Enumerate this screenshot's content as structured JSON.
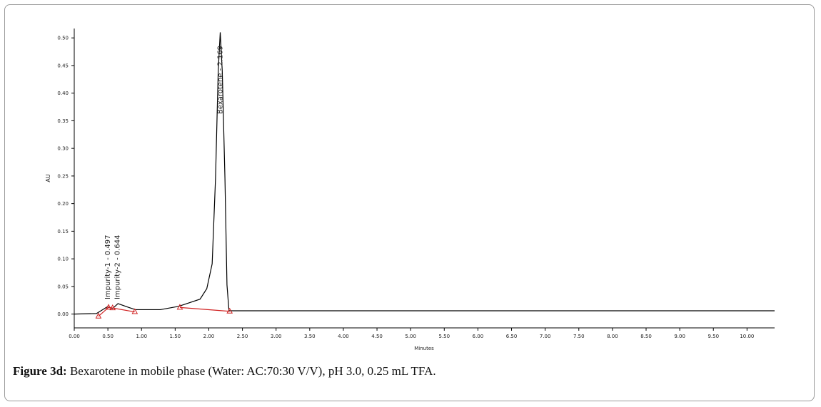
{
  "chart_data": {
    "type": "line",
    "y_label": "AU",
    "x_label": "Minutes",
    "xlim": [
      0,
      10.41
    ],
    "ylim": [
      -0.025,
      0.517
    ],
    "xticks": [
      {
        "value": 0,
        "label": "0.00"
      },
      {
        "value": 0.5,
        "label": "0.50"
      },
      {
        "value": 1,
        "label": "1.00"
      },
      {
        "value": 1.5,
        "label": "1.50"
      },
      {
        "value": 2,
        "label": "2.00"
      },
      {
        "value": 2.5,
        "label": "2.50"
      },
      {
        "value": 3,
        "label": "3.00"
      },
      {
        "value": 3.5,
        "label": "3.50"
      },
      {
        "value": 4,
        "label": "4.00"
      },
      {
        "value": 4.5,
        "label": "4.50"
      },
      {
        "value": 5,
        "label": "5.00"
      },
      {
        "value": 5.5,
        "label": "5.50"
      },
      {
        "value": 6,
        "label": "6.00"
      },
      {
        "value": 6.5,
        "label": "6.50"
      },
      {
        "value": 7,
        "label": "7.00"
      },
      {
        "value": 7.5,
        "label": "7.50"
      },
      {
        "value": 8,
        "label": "8.00"
      },
      {
        "value": 8.5,
        "label": "8.50"
      },
      {
        "value": 9,
        "label": "9.00"
      },
      {
        "value": 9.5,
        "label": "9.50"
      },
      {
        "value": 10,
        "label": "10.00"
      }
    ],
    "yticks": [
      {
        "value": 0,
        "label": "0.00"
      },
      {
        "value": 0.05,
        "label": "0.05"
      },
      {
        "value": 0.1,
        "label": "0.10"
      },
      {
        "value": 0.15,
        "label": "0.15"
      },
      {
        "value": 0.2,
        "label": "0.20"
      },
      {
        "value": 0.25,
        "label": "0.25"
      },
      {
        "value": 0.3,
        "label": "0.30"
      },
      {
        "value": 0.35,
        "label": "0.35"
      },
      {
        "value": 0.4,
        "label": "0.40"
      },
      {
        "value": 0.45,
        "label": "0.45"
      },
      {
        "value": 0.5,
        "label": "0.50"
      }
    ],
    "series": [
      {
        "color": "#000000",
        "x": [
          0,
          0.33,
          0.49,
          0.57,
          0.65,
          0.81,
          0.91,
          1.28,
          1.55,
          1.87,
          1.97,
          2.05,
          2.1,
          2.14,
          2.17,
          2.2,
          2.24,
          2.27,
          2.3,
          10.41
        ],
        "values": [
          0,
          0.001,
          0.013,
          0.01,
          0.019,
          0.012,
          0.008,
          0.008,
          0.014,
          0.027,
          0.046,
          0.091,
          0.246,
          0.44,
          0.51,
          0.44,
          0.246,
          0.053,
          0.006,
          0.006
        ]
      },
      {
        "color": "#d02020",
        "marker": "triangle",
        "x": [
          0.36,
          0.51,
          0.57,
          0.9,
          1.2,
          1.57,
          2.31
        ],
        "values": [
          -0.004,
          0.012,
          0.011,
          0.004,
          null,
          0.012,
          0.005
        ]
      }
    ],
    "annotations": [
      {
        "text": "Impurity-1 - 0.497",
        "x": 0.497
      },
      {
        "text": "Impurity-2 - 0.644",
        "x": 0.644
      },
      {
        "text": "Bexarotene - 2.169",
        "x": 2.169
      }
    ]
  },
  "caption": {
    "label": "Figure 3d:",
    "text": "Bexarotene in mobile phase (Water: AC:70:30 V/V), pH 3.0, 0.25 mL TFA."
  }
}
